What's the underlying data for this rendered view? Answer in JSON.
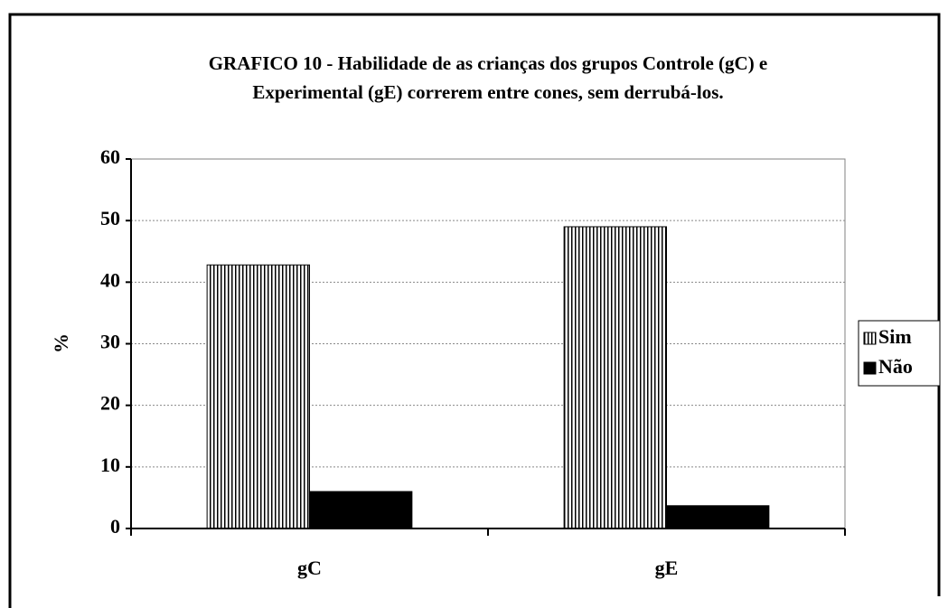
{
  "chart_data": {
    "type": "bar",
    "title": [
      "GRAFICO 10 - Habilidade de as crianças dos grupos Controle (gC) e",
      "Experimental (gE)  correrem entre cones, sem derrubá-los."
    ],
    "ylabel": "%",
    "categories": [
      "gC",
      "gE"
    ],
    "series": [
      {
        "name": "Sim",
        "color": "#ffffff",
        "pattern": "vertical-stripes",
        "values": [
          42.8,
          49.0
        ]
      },
      {
        "name": "Não",
        "color": "#000000",
        "values": [
          6.0,
          3.7
        ]
      }
    ],
    "ylim": [
      0,
      60
    ],
    "yticks": [
      0,
      10,
      20,
      30,
      40,
      50,
      60
    ],
    "grid": true,
    "legend": "right"
  }
}
